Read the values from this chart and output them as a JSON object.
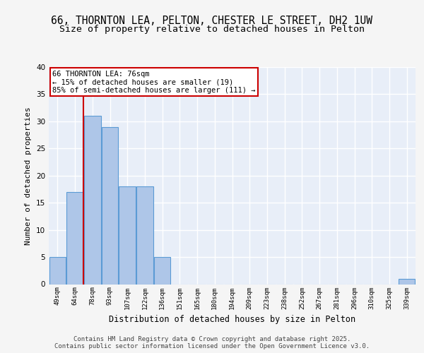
{
  "title_line1": "66, THORNTON LEA, PELTON, CHESTER LE STREET, DH2 1UW",
  "title_line2": "Size of property relative to detached houses in Pelton",
  "xlabel": "Distribution of detached houses by size in Pelton",
  "ylabel": "Number of detached properties",
  "categories": [
    "49sqm",
    "64sqm",
    "78sqm",
    "93sqm",
    "107sqm",
    "122sqm",
    "136sqm",
    "151sqm",
    "165sqm",
    "180sqm",
    "194sqm",
    "209sqm",
    "223sqm",
    "238sqm",
    "252sqm",
    "267sqm",
    "281sqm",
    "296sqm",
    "310sqm",
    "325sqm",
    "339sqm"
  ],
  "values": [
    5,
    17,
    31,
    29,
    18,
    18,
    5,
    0,
    0,
    0,
    0,
    0,
    0,
    0,
    0,
    0,
    0,
    0,
    0,
    0,
    1
  ],
  "bar_color": "#aec6e8",
  "bar_edge_color": "#5b9bd5",
  "vline_x": 1.5,
  "vline_color": "#cc0000",
  "annotation_text": "66 THORNTON LEA: 76sqm\n← 15% of detached houses are smaller (19)\n85% of semi-detached houses are larger (111) →",
  "annotation_box_color": "#cc0000",
  "ylim": [
    0,
    40
  ],
  "yticks": [
    0,
    5,
    10,
    15,
    20,
    25,
    30,
    35,
    40
  ],
  "footer_text": "Contains HM Land Registry data © Crown copyright and database right 2025.\nContains public sector information licensed under the Open Government Licence v3.0.",
  "bg_color": "#e8eef8",
  "grid_color": "#ffffff",
  "fig_bg_color": "#f5f5f5",
  "title_fontsize": 10.5,
  "subtitle_fontsize": 9.5
}
